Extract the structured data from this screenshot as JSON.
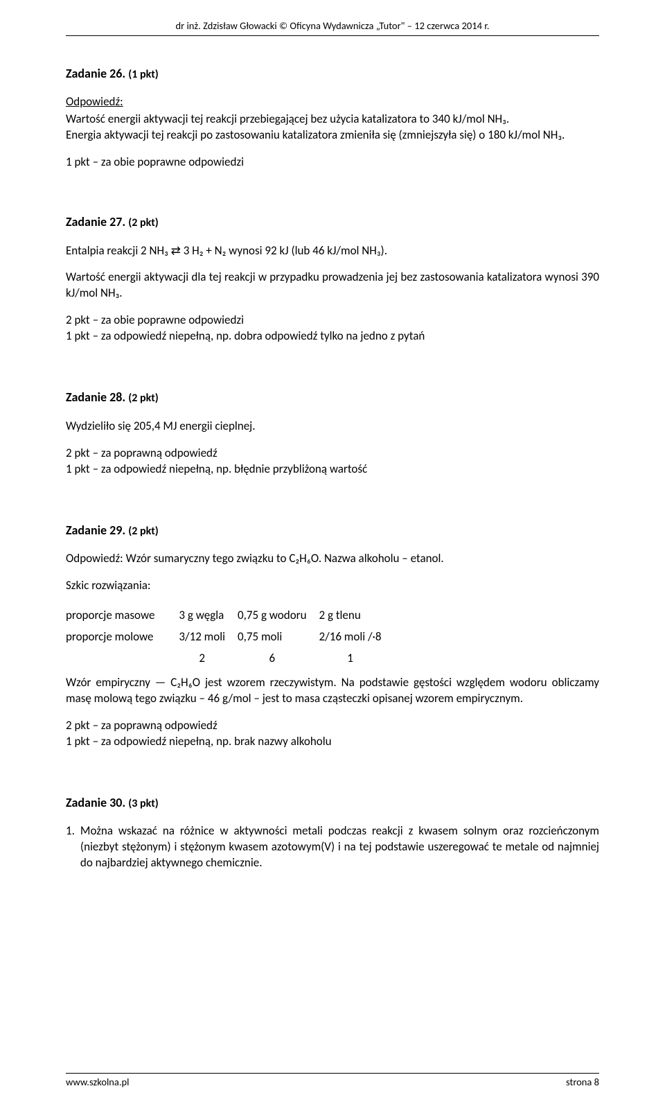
{
  "header": {
    "text": "dr inż. Zdzisław Głowacki © Oficyna Wydawnicza „Tutor\" – 12 czerwca 2014 r."
  },
  "t26": {
    "title": "Zadanie 26.",
    "points": "(1 pkt)",
    "answer_label": "Odpowiedź:",
    "line1": "Wartość energii aktywacji tej reakcji przebiegającej bez użycia katalizatora to 340 kJ/mol NH₃.",
    "line2": "Energia aktywacji tej reakcji po zastosowaniu katalizatora zmieniła się (zmniejszyła się) o 180 kJ/mol NH₃.",
    "scoring": "1 pkt – za obie poprawne odpowiedzi"
  },
  "t27": {
    "title": "Zadanie 27.",
    "points": "(2 pkt)",
    "line1": "Entalpia reakcji  2 NH₃  ⇄  3 H₂ + N₂  wynosi 92 kJ (lub 46 kJ/mol NH₃).",
    "line2": "Wartość energii aktywacji dla tej reakcji w przypadku prowadzenia jej bez zastosowania katalizatora wynosi 390 kJ/mol NH₃.",
    "scoring1": "2 pkt – za obie poprawne odpowiedzi",
    "scoring2": "1 pkt – za odpowiedź niepełną, np. dobra odpowiedź tylko na jedno z pytań"
  },
  "t28": {
    "title": "Zadanie 28.",
    "points": "(2 pkt)",
    "line1": "Wydzieliło się 205,4 MJ energii cieplnej.",
    "scoring1": "2 pkt – za poprawną odpowiedź",
    "scoring2": "1 pkt – za odpowiedź niepełną, np. błędnie przybliżoną wartość"
  },
  "t29": {
    "title": "Zadanie 29.",
    "points": "(2 pkt)",
    "answer_line": "Odpowiedź: Wzór sumaryczny tego związku to C₂H₆O. Nazwa alkoholu – etanol.",
    "sketch_label": "Szkic rozwiązania:",
    "row1": {
      "c0": "proporcje masowe",
      "c1": "3 g węgla",
      "c2": "0,75 g wodoru",
      "c3": "2 g tlenu"
    },
    "row2": {
      "c0": "proporcje molowe",
      "c1": "3/12 moli",
      "c2": "0,75 moli",
      "c3": "2/16 moli   /·8"
    },
    "row3": {
      "c0": "",
      "c1": "2",
      "c2": "6",
      "c3": "1"
    },
    "empirical": "Wzór empiryczny — C₂H₆O jest wzorem rzeczywistym. Na podstawie gęstości względem wodoru obliczamy masę molową tego związku – 46 g/mol – jest to masa cząsteczki opisanej wzorem empirycznym.",
    "scoring1": "2 pkt – za poprawną odpowiedź",
    "scoring2": "1 pkt – za odpowiedź niepełną, np. brak nazwy alkoholu"
  },
  "t30": {
    "title": "Zadanie 30.",
    "points": "(3 pkt)",
    "item1_num": "1.",
    "item1_text": "Można wskazać na różnice w aktywności metali podczas reakcji z kwasem solnym oraz rozcieńczonym (niezbyt stężonym) i stężonym kwasem azotowym(V) i na tej podstawie uszeregować te metale od najmniej do najbardziej aktywnego chemicznie."
  },
  "footer": {
    "left": "www.szkolna.pl",
    "right": "strona 8"
  }
}
